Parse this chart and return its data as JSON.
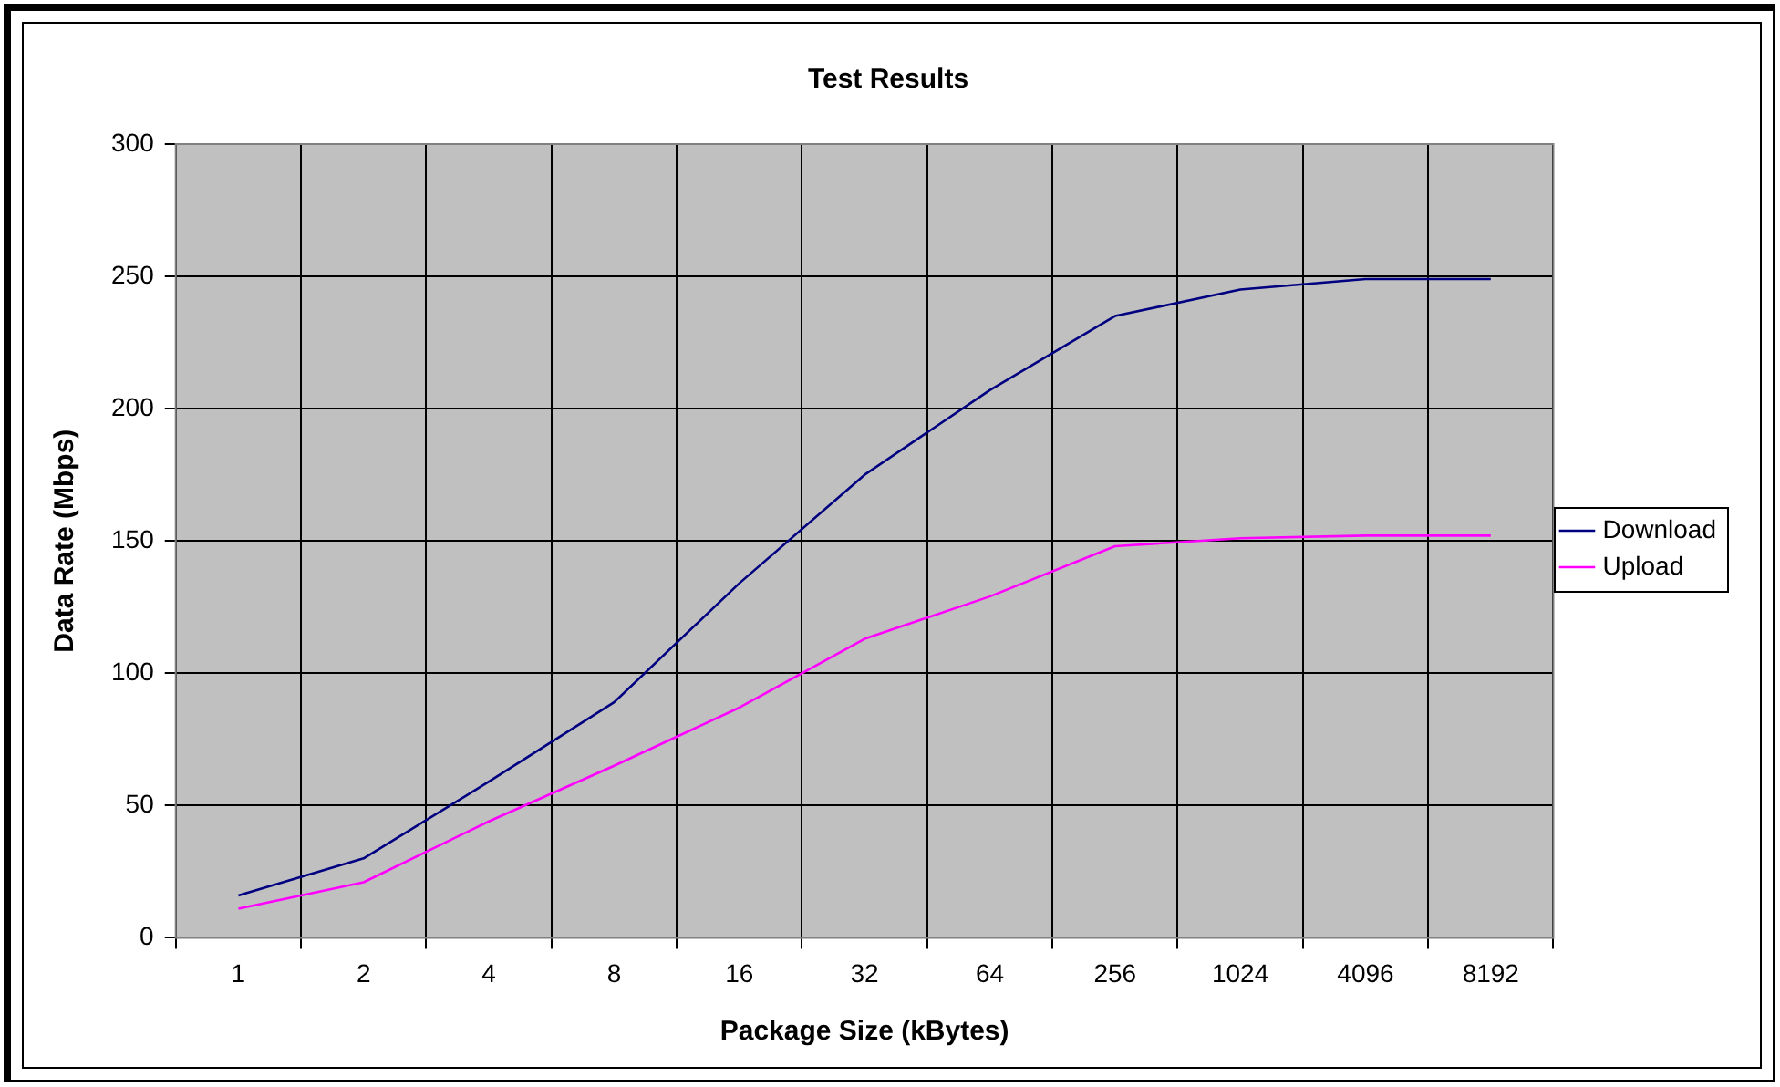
{
  "chart_data": {
    "type": "line",
    "title": "Test Results",
    "xlabel": "Package Size (kBytes)",
    "ylabel": "Data Rate (Mbps)",
    "categories": [
      "1",
      "2",
      "4",
      "8",
      "16",
      "32",
      "64",
      "256",
      "1024",
      "4096",
      "8192"
    ],
    "series": [
      {
        "name": "Download",
        "color": "#000080",
        "values": [
          16,
          30,
          59,
          89,
          134,
          175,
          207,
          235,
          245,
          249,
          249
        ]
      },
      {
        "name": "Upload",
        "color": "#ff00ff",
        "values": [
          11,
          21,
          44,
          65,
          87,
          113,
          129,
          148,
          151,
          152,
          152
        ]
      }
    ],
    "ylim": [
      0,
      300
    ],
    "yticks": [
      0,
      50,
      100,
      150,
      200,
      250,
      300
    ],
    "grid": true,
    "legend": "right",
    "marker": "none",
    "line_style": "solid"
  }
}
